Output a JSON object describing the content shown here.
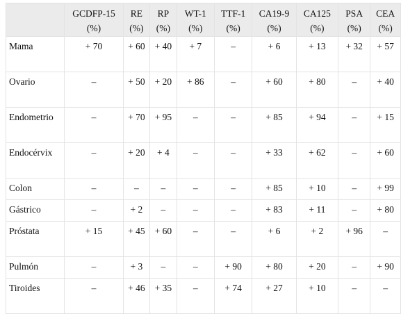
{
  "table": {
    "columns": [
      {
        "name": "GCDFP-15",
        "unit": "(%)"
      },
      {
        "name": "RE",
        "unit": "(%)"
      },
      {
        "name": "RP",
        "unit": "(%)"
      },
      {
        "name": "WT-1",
        "unit": "(%)"
      },
      {
        "name": "TTF-1",
        "unit": "(%)"
      },
      {
        "name": "CA19-9",
        "unit": "(%)"
      },
      {
        "name": "CA125",
        "unit": "(%)"
      },
      {
        "name": "PSA",
        "unit": "(%)"
      },
      {
        "name": "CEA",
        "unit": "(%)"
      }
    ],
    "rows": [
      {
        "label": "Mama",
        "values": [
          "+ 70",
          "+ 60",
          "+ 40",
          "+ 7",
          "–",
          "+ 6",
          "+ 13",
          "+ 32",
          "+ 57"
        ]
      },
      {
        "label": "Ovario",
        "values": [
          "–",
          "+ 50",
          "+ 20",
          "+ 86",
          "–",
          "+ 60",
          "+ 80",
          "–",
          "+ 40"
        ]
      },
      {
        "label": "Endometrio",
        "values": [
          "–",
          "+ 70",
          "+ 95",
          "–",
          "–",
          "+ 85",
          "+ 94",
          "–",
          "+ 15"
        ]
      },
      {
        "label": "Endocérvix",
        "values": [
          "–",
          "+ 20",
          "+ 4",
          "–",
          "–",
          "+ 33",
          "+ 62",
          "–",
          "+ 60"
        ]
      },
      {
        "label": "Colon",
        "values": [
          "–",
          "–",
          "–",
          "–",
          "–",
          "+ 85",
          "+ 10",
          "–",
          "+ 99"
        ]
      },
      {
        "label": "Gástrico",
        "values": [
          "–",
          "+ 2",
          "–",
          "–",
          "–",
          "+ 83",
          "+ 11",
          "–",
          "+ 80"
        ]
      },
      {
        "label": "Próstata",
        "values": [
          "+ 15",
          "+ 45",
          "+ 60",
          "–",
          "–",
          "+ 6",
          "+ 2",
          "+ 96",
          "–"
        ]
      },
      {
        "label": "Pulmón",
        "values": [
          "–",
          "+ 3",
          "–",
          "–",
          "+ 90",
          "+ 80",
          "+ 20",
          "–",
          "+ 90"
        ]
      },
      {
        "label": "Tiroides",
        "values": [
          "–",
          "+ 46",
          "+ 35",
          "–",
          "+ 74",
          "+ 27",
          "+ 10",
          "–",
          "–"
        ]
      }
    ]
  }
}
